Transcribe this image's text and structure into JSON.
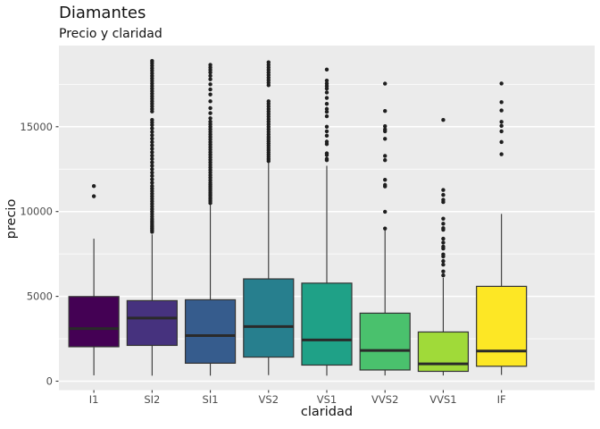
{
  "header": {
    "title": "Diamantes",
    "subtitle": "Precio y claridad"
  },
  "chart_data": {
    "type": "boxplot",
    "title": "Diamantes",
    "subtitle": "Precio y claridad",
    "xlabel": "claridad",
    "ylabel": "precio",
    "categories": [
      "I1",
      "SI2",
      "SI1",
      "VS2",
      "VS1",
      "VVS2",
      "VVS1",
      "IF"
    ],
    "yticks": [
      0,
      5000,
      10000,
      15000
    ],
    "minor_gridlines": [
      2500,
      7500,
      12500,
      17500
    ],
    "ylim": [
      -530,
      19680
    ],
    "grid": "on",
    "legend": "none",
    "panel_bg": "#ebebeb",
    "gridline_color": "#ffffff",
    "box_outline_color": "#333333",
    "median_color": "#2a2a2a",
    "outlier_color": "#1f1f1f",
    "tick_label_color": "#4d4d4d",
    "fill_palette_name": "viridis",
    "series": [
      {
        "category": "I1",
        "fill": "#440154",
        "whisker_low": 345,
        "q1": 2030,
        "median": 3100,
        "q3": 4990,
        "whisker_high": 8400,
        "outliers": [
          10900,
          11500
        ]
      },
      {
        "category": "SI2",
        "fill": "#46327e",
        "whisker_low": 326,
        "q1": 2110,
        "median": 3720,
        "q3": 4750,
        "whisker_high": 8650,
        "outliers": [
          8800,
          8900,
          9000,
          9100,
          9200,
          9320,
          9440,
          9560,
          9700,
          9850,
          10000,
          10150,
          10300,
          10450,
          10600,
          10750,
          10900,
          11050,
          11200,
          11350,
          11500,
          11700,
          11900,
          12100,
          12300,
          12500,
          12700,
          12900,
          13100,
          13300,
          13500,
          13700,
          13900,
          14100,
          14300,
          14500,
          14700,
          14900,
          15100,
          15250,
          15400,
          15900,
          16050,
          16200,
          16350,
          16500,
          16650,
          16800,
          16950,
          17100,
          17250,
          17400,
          17550,
          17700,
          17850,
          18000,
          18150,
          18300,
          18450,
          18600,
          18750,
          18880
        ]
      },
      {
        "category": "SI1",
        "fill": "#365c8d",
        "whisker_low": 326,
        "q1": 1060,
        "median": 2690,
        "q3": 4800,
        "whisker_high": 10400,
        "outliers": [
          10500,
          10620,
          10740,
          10860,
          10980,
          11100,
          11220,
          11340,
          11460,
          11580,
          11700,
          11850,
          12000,
          12150,
          12300,
          12450,
          12600,
          12750,
          12900,
          13050,
          13200,
          13350,
          13500,
          13650,
          13800,
          13950,
          14100,
          14250,
          14400,
          14550,
          14700,
          14850,
          15000,
          15150,
          15300,
          15500,
          15800,
          16100,
          16500,
          16900,
          17200,
          17500,
          17800,
          18000,
          18200,
          18350,
          18500,
          18650
        ]
      },
      {
        "category": "VS2",
        "fill": "#277f8e",
        "whisker_low": 357,
        "q1": 1420,
        "median": 3220,
        "q3": 6030,
        "whisker_high": 12920,
        "outliers": [
          12980,
          13100,
          13230,
          13360,
          13490,
          13620,
          13750,
          13880,
          14010,
          14140,
          14270,
          14400,
          14550,
          14700,
          14850,
          15000,
          15150,
          15300,
          15450,
          15600,
          15750,
          15900,
          16050,
          16200,
          16350,
          16500,
          17450,
          17600,
          17750,
          17900,
          18050,
          18200,
          18350,
          18500,
          18650,
          18800
        ]
      },
      {
        "category": "VS1",
        "fill": "#1fa187",
        "whisker_low": 327,
        "q1": 950,
        "median": 2430,
        "q3": 5780,
        "whisker_high": 12700,
        "outliers": [
          13030,
          13100,
          13330,
          13430,
          13980,
          14120,
          14470,
          14730,
          15000,
          15620,
          15880,
          16050,
          16350,
          16700,
          17020,
          17250,
          17400,
          17550,
          17720,
          18370
        ]
      },
      {
        "category": "VVS2",
        "fill": "#4ac16d",
        "whisker_low": 336,
        "q1": 660,
        "median": 1810,
        "q3": 4010,
        "whisker_high": 8920,
        "outliers": [
          9000,
          9990,
          11480,
          11570,
          11870,
          13030,
          13280,
          14290,
          14730,
          14840,
          15030,
          15930,
          17540
        ]
      },
      {
        "category": "VVS1",
        "fill": "#a0da39",
        "whisker_low": 336,
        "q1": 580,
        "median": 1020,
        "q3": 2900,
        "whisker_high": 6100,
        "outliers": [
          6240,
          6470,
          6870,
          7080,
          7350,
          7470,
          7820,
          7930,
          8170,
          8400,
          8930,
          9020,
          9280,
          9580,
          10560,
          10690,
          10980,
          11270,
          15400
        ]
      },
      {
        "category": "IF",
        "fill": "#fde725",
        "whisker_low": 369,
        "q1": 880,
        "median": 1780,
        "q3": 5590,
        "whisker_high": 9860,
        "outliers": [
          13380,
          14100,
          14730,
          15050,
          15290,
          15960,
          16450,
          17550
        ]
      }
    ]
  }
}
